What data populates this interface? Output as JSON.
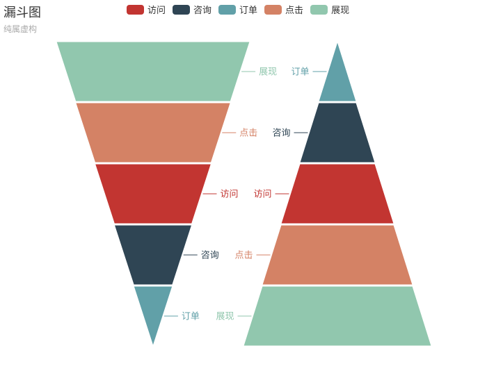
{
  "chart_data": {
    "type": "funnel",
    "title": "漏斗图",
    "subtitle": "纯属虚构",
    "legend": [
      "访问",
      "咨询",
      "订单",
      "点击",
      "展现"
    ],
    "colors": {
      "访问": "#c23531",
      "咨询": "#2f4554",
      "订单": "#61a0a8",
      "点击": "#d48265",
      "展现": "#91c7ae"
    },
    "series": [
      {
        "sort": "descending",
        "data": [
          {
            "name": "展现",
            "value": 100
          },
          {
            "name": "点击",
            "value": 80
          },
          {
            "name": "访问",
            "value": 60
          },
          {
            "name": "咨询",
            "value": 40
          },
          {
            "name": "订单",
            "value": 20
          }
        ]
      },
      {
        "sort": "ascending",
        "data": [
          {
            "name": "订单",
            "value": 20
          },
          {
            "name": "咨询",
            "value": 40
          },
          {
            "name": "访问",
            "value": 60
          },
          {
            "name": "点击",
            "value": 80
          },
          {
            "name": "展现",
            "value": 100
          }
        ]
      }
    ]
  }
}
